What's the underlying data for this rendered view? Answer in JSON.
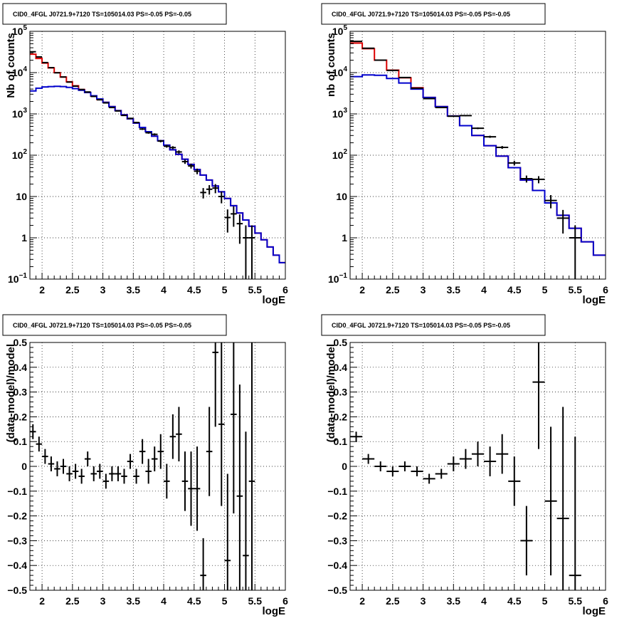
{
  "colors": {
    "data": "#000000",
    "model_total": "#dd0000",
    "model_component": "#0000cc",
    "grid": "#000000",
    "frame": "#000000"
  },
  "chart_data": [
    {
      "type": "line",
      "panel": "top-left",
      "title": "CID0_4FGL J0721.9+7120 TS=105014.03 PS=-0.05 PS=-0.05",
      "xlabel": "logE",
      "ylabel": "Nb of counts",
      "xlim": [
        1.8,
        6.0
      ],
      "ylim": [
        0.1,
        100000
      ],
      "yscale": "log",
      "grid": true,
      "xticks": [
        "2",
        "2.5",
        "3",
        "3.5",
        "4",
        "4.5",
        "5",
        "5.5",
        "6"
      ],
      "yticks": [
        {
          "value": 0.1,
          "base": "10",
          "exp": "−1"
        },
        {
          "value": 1,
          "label": "1"
        },
        {
          "value": 10,
          "label": "10"
        },
        {
          "value": 100,
          "base": "10",
          "exp": "2"
        },
        {
          "value": 1000,
          "base": "10",
          "exp": "3"
        },
        {
          "value": 10000,
          "base": "10",
          "exp": "4"
        },
        {
          "value": 100000,
          "base": "10",
          "exp": "5"
        }
      ],
      "bin_edges": [
        1.8,
        1.9,
        2.0,
        2.1,
        2.2,
        2.3,
        2.4,
        2.5,
        2.6,
        2.7,
        2.8,
        2.9,
        3.0,
        3.1,
        3.2,
        3.3,
        3.4,
        3.5,
        3.6,
        3.7,
        3.8,
        3.9,
        4.0,
        4.1,
        4.2,
        4.3,
        4.4,
        4.5,
        4.6,
        4.7,
        4.8,
        4.9,
        5.0,
        5.1,
        5.2,
        5.3,
        5.4,
        5.5,
        5.6,
        5.7,
        5.8,
        5.9,
        6.0
      ],
      "series": [
        {
          "name": "",
          "role": "model_total",
          "color": "#dd0000",
          "values": [
            28000,
            22000,
            17000,
            13000,
            10000,
            7800,
            6000,
            4800,
            3900,
            3300,
            2700,
            2250,
            1900,
            1500,
            1200,
            950,
            760,
            600,
            470,
            370,
            290,
            225,
            175,
            135,
            105,
            80,
            60,
            45,
            33,
            25,
            18,
            13,
            9,
            6,
            4,
            2.7,
            1.9,
            1.3,
            0.9,
            0.6,
            0.38,
            0.25
          ]
        },
        {
          "name": "",
          "role": "model_component",
          "color": "#0000cc",
          "values": [
            3600,
            4200,
            4500,
            4600,
            4650,
            4600,
            4400,
            4100,
            3750,
            3300,
            2750,
            2300,
            1900,
            1500,
            1200,
            950,
            760,
            600,
            470,
            370,
            290,
            225,
            175,
            135,
            105,
            80,
            60,
            45,
            33,
            25,
            18,
            13,
            9,
            6,
            4,
            2.7,
            1.9,
            1.3,
            0.9,
            0.6,
            0.38,
            0.25
          ]
        }
      ],
      "points": {
        "x": [
          1.85,
          1.95,
          2.05,
          2.15,
          2.25,
          2.35,
          2.45,
          2.55,
          2.65,
          2.75,
          2.85,
          2.95,
          3.05,
          3.15,
          3.25,
          3.35,
          3.45,
          3.55,
          3.65,
          3.75,
          3.85,
          3.95,
          4.05,
          4.15,
          4.25,
          4.35,
          4.45,
          4.55,
          4.65,
          4.75,
          4.85,
          4.95,
          5.05,
          5.15,
          5.25,
          5.35,
          5.45
        ],
        "y": [
          32000,
          24000,
          17500,
          13200,
          9900,
          7850,
          5900,
          4700,
          3900,
          3400,
          2650,
          2200,
          1850,
          1430,
          1180,
          920,
          780,
          620,
          430,
          350,
          320,
          220,
          165,
          153,
          120,
          70,
          55,
          41,
          12.5,
          15,
          16,
          10,
          3.1,
          3.8,
          2.2,
          1.0,
          1.0
        ]
      },
      "xerr": 0.05
    },
    {
      "type": "line",
      "panel": "top-right",
      "title": "CID0_4FGL J0721.9+7120 TS=105014.03 PS=-0.05 PS=-0.05",
      "xlabel": "logE",
      "ylabel": "nb of counts",
      "xlim": [
        1.8,
        6.0
      ],
      "ylim": [
        0.1,
        100000
      ],
      "yscale": "log",
      "grid": true,
      "xticks": [
        "2",
        "2.5",
        "3",
        "3.5",
        "4",
        "4.5",
        "5",
        "5.5",
        "6"
      ],
      "yticks": [
        {
          "value": 0.1,
          "base": "10",
          "exp": "−1"
        },
        {
          "value": 1,
          "label": "1"
        },
        {
          "value": 10,
          "label": "10"
        },
        {
          "value": 100,
          "base": "10",
          "exp": "2"
        },
        {
          "value": 1000,
          "base": "10",
          "exp": "3"
        },
        {
          "value": 10000,
          "base": "10",
          "exp": "4"
        },
        {
          "value": 100000,
          "base": "10",
          "exp": "5"
        }
      ],
      "bin_edges": [
        1.8,
        2.0,
        2.2,
        2.4,
        2.6,
        2.8,
        3.0,
        3.2,
        3.4,
        3.6,
        3.8,
        4.0,
        4.2,
        4.4,
        4.6,
        4.8,
        5.0,
        5.2,
        5.4,
        5.6,
        5.8,
        6.0
      ],
      "series": [
        {
          "name": "",
          "role": "model_total",
          "color": "#dd0000",
          "values": [
            52000,
            38000,
            20000,
            11500,
            7500,
            4300,
            2500,
            1500,
            890,
            520,
            300,
            170,
            95,
            50,
            25,
            14,
            7,
            3.5,
            1.7,
            0.8,
            0.38
          ]
        },
        {
          "name": "",
          "role": "model_component",
          "color": "#0000cc",
          "values": [
            8000,
            8800,
            8600,
            7200,
            5600,
            4000,
            2500,
            1500,
            890,
            520,
            300,
            170,
            95,
            50,
            25,
            14,
            7,
            3.5,
            1.7,
            0.8,
            0.38
          ]
        }
      ],
      "points": {
        "x": [
          1.9,
          2.1,
          2.3,
          2.5,
          2.7,
          2.9,
          3.1,
          3.3,
          3.5,
          3.7,
          3.9,
          4.1,
          4.3,
          4.5,
          4.7,
          4.9,
          5.1,
          5.3,
          5.5
        ],
        "y": [
          57000,
          39000,
          20000,
          11300,
          7600,
          4200,
          2350,
          1430,
          880,
          910,
          450,
          280,
          155,
          65,
          27,
          26,
          8,
          3,
          1.0
        ]
      },
      "xerr": 0.1
    },
    {
      "type": "scatter",
      "panel": "bottom-left",
      "title": "CID0_4FGL J0721.9+7120 TS=105014.03 PS=-0.05 PS=-0.05",
      "xlabel": "logE",
      "ylabel": "(data-model)/model",
      "xlim": [
        1.8,
        6.0
      ],
      "ylim": [
        -0.5,
        0.5
      ],
      "yscale": "linear",
      "grid": true,
      "xticks": [
        "2",
        "2.5",
        "3",
        "3.5",
        "4",
        "4.5",
        "5",
        "5.5",
        "6"
      ],
      "yticks": [
        {
          "value": -0.5,
          "label": "−0.5"
        },
        {
          "value": -0.4,
          "label": "−0.4"
        },
        {
          "value": -0.3,
          "label": "−0.3"
        },
        {
          "value": -0.2,
          "label": "−0.2"
        },
        {
          "value": -0.1,
          "label": "−0.1"
        },
        {
          "value": 0,
          "label": "0"
        },
        {
          "value": 0.1,
          "label": "0.1"
        },
        {
          "value": 0.2,
          "label": "0.2"
        },
        {
          "value": 0.3,
          "label": "0.3"
        },
        {
          "value": 0.4,
          "label": "0.4"
        },
        {
          "value": 0.5,
          "label": "0.5"
        }
      ],
      "points": {
        "x": [
          1.85,
          1.95,
          2.05,
          2.15,
          2.25,
          2.35,
          2.45,
          2.55,
          2.65,
          2.75,
          2.85,
          2.95,
          3.05,
          3.15,
          3.25,
          3.35,
          3.45,
          3.55,
          3.65,
          3.75,
          3.85,
          3.95,
          4.05,
          4.15,
          4.25,
          4.35,
          4.45,
          4.55,
          4.65,
          4.75,
          4.85,
          4.95,
          5.05,
          5.15,
          5.25,
          5.35,
          5.45
        ],
        "y": [
          0.14,
          0.09,
          0.04,
          0.01,
          -0.01,
          0.0,
          -0.03,
          -0.02,
          -0.04,
          0.03,
          -0.03,
          -0.02,
          -0.06,
          -0.03,
          -0.03,
          -0.04,
          0.02,
          -0.04,
          0.06,
          -0.02,
          0.03,
          0.06,
          -0.06,
          0.12,
          0.13,
          -0.06,
          -0.09,
          -0.09,
          -0.44,
          0.06,
          0.46,
          0.17,
          -0.38,
          0.21,
          -0.12,
          -0.36,
          -0.06
        ],
        "yerr": [
          0.03,
          0.03,
          0.03,
          0.03,
          0.03,
          0.03,
          0.03,
          0.03,
          0.03,
          0.03,
          0.03,
          0.03,
          0.03,
          0.03,
          0.03,
          0.03,
          0.03,
          0.03,
          0.05,
          0.05,
          0.05,
          0.07,
          0.07,
          0.09,
          0.11,
          0.12,
          0.15,
          0.17,
          0.15,
          0.18,
          0.3,
          0.33,
          0.35,
          0.4,
          0.45,
          0.5,
          0.6
        ]
      },
      "xerr": 0.05
    },
    {
      "type": "scatter",
      "panel": "bottom-right",
      "title": "CID0_4FGL J0721.9+7120 TS=105014.03 PS=-0.05 PS=-0.05",
      "xlabel": "logE",
      "ylabel": "(data-model)/model",
      "xlim": [
        1.8,
        6.0
      ],
      "ylim": [
        -0.5,
        0.5
      ],
      "yscale": "linear",
      "grid": true,
      "xticks": [
        "2",
        "2.5",
        "3",
        "3.5",
        "4",
        "4.5",
        "5",
        "5.5",
        "6"
      ],
      "yticks": [
        {
          "value": -0.5,
          "label": "−0.5"
        },
        {
          "value": -0.4,
          "label": "−0.4"
        },
        {
          "value": -0.3,
          "label": "−0.3"
        },
        {
          "value": -0.2,
          "label": "−0.2"
        },
        {
          "value": -0.1,
          "label": "−0.1"
        },
        {
          "value": 0,
          "label": "0"
        },
        {
          "value": 0.1,
          "label": "0.1"
        },
        {
          "value": 0.2,
          "label": "0.2"
        },
        {
          "value": 0.3,
          "label": "0.3"
        },
        {
          "value": 0.4,
          "label": "0.4"
        },
        {
          "value": 0.5,
          "label": "0.5"
        }
      ],
      "points": {
        "x": [
          1.9,
          2.1,
          2.3,
          2.5,
          2.7,
          2.9,
          3.1,
          3.3,
          3.5,
          3.7,
          3.9,
          4.1,
          4.3,
          4.5,
          4.7,
          4.9,
          5.1,
          5.3,
          5.5
        ],
        "y": [
          0.12,
          0.03,
          0.0,
          -0.02,
          0.0,
          -0.02,
          -0.05,
          -0.03,
          0.01,
          0.03,
          0.05,
          0.02,
          0.05,
          -0.06,
          -0.3,
          0.34,
          -0.14,
          -0.21,
          -0.44
        ],
        "yerr": [
          0.02,
          0.02,
          0.02,
          0.02,
          0.02,
          0.02,
          0.02,
          0.02,
          0.03,
          0.04,
          0.05,
          0.06,
          0.08,
          0.1,
          0.14,
          0.27,
          0.3,
          0.45,
          0.56
        ]
      },
      "xerr": 0.1
    }
  ]
}
